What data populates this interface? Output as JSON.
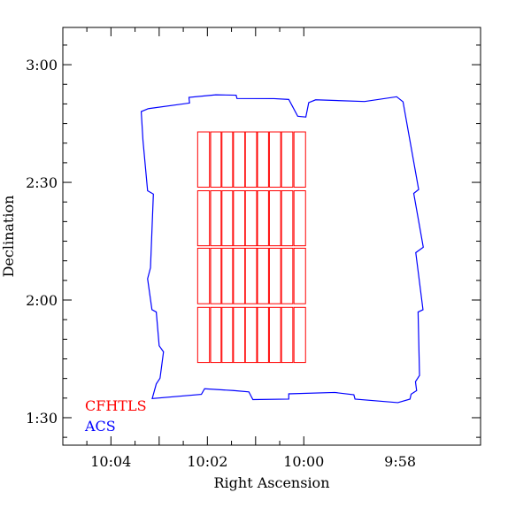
{
  "chart_data": {
    "type": "scatter",
    "xlabel": "Right Ascension",
    "ylabel": "Declination",
    "xlim": [
      10.0833,
      9.9389
    ],
    "ylim": [
      1.3833,
      3.1583
    ],
    "x_ticks": [
      {
        "value": 10.0667,
        "label": "10:04"
      },
      {
        "value": 10.0333,
        "label": "10:02"
      },
      {
        "value": 10.0,
        "label": "10:00"
      },
      {
        "value": 9.9667,
        "label": "9:58"
      }
    ],
    "y_ticks": [
      {
        "value": 3.0,
        "label": "3:00"
      },
      {
        "value": 2.5,
        "label": "2:30"
      },
      {
        "value": 2.0,
        "label": "2:00"
      },
      {
        "value": 1.5,
        "label": "1:30"
      }
    ],
    "series": [
      {
        "name": "ACS",
        "color": "#0000ff",
        "kind": "outline",
        "points": [
          [
            10.0537,
            2.8133
          ],
          [
            10.0395,
            2.8371
          ],
          [
            10.0397,
            2.8612
          ],
          [
            10.0304,
            2.8721
          ],
          [
            10.0234,
            2.8704
          ],
          [
            10.0231,
            2.8563
          ],
          [
            10.0103,
            2.8558
          ],
          [
            10.0052,
            2.8524
          ],
          [
            10.0021,
            2.7809
          ],
          [
            9.9993,
            2.7776
          ],
          [
            9.9983,
            2.8387
          ],
          [
            9.9959,
            2.8508
          ],
          [
            9.979,
            2.8435
          ],
          [
            9.9679,
            2.8637
          ],
          [
            9.9657,
            2.8421
          ],
          [
            9.9603,
            2.4697
          ],
          [
            9.962,
            2.4532
          ],
          [
            9.9587,
            2.2242
          ],
          [
            9.9613,
            2.2014
          ],
          [
            9.9588,
            1.9588
          ],
          [
            9.9605,
            1.9491
          ],
          [
            9.96,
            1.6797
          ],
          [
            9.9614,
            1.6529
          ],
          [
            9.961,
            1.6151
          ],
          [
            9.9629,
            1.6001
          ],
          [
            9.9633,
            1.579
          ],
          [
            9.9675,
            1.564
          ],
          [
            9.9823,
            1.5791
          ],
          [
            9.9827,
            1.5973
          ],
          [
            9.9893,
            1.6072
          ],
          [
            10.0052,
            1.6015
          ],
          [
            10.0052,
            1.5791
          ],
          [
            10.0176,
            1.577
          ],
          [
            10.019,
            1.6098
          ],
          [
            10.0244,
            1.6155
          ],
          [
            10.0343,
            1.623
          ],
          [
            10.0354,
            1.5994
          ],
          [
            10.0524,
            1.5813
          ],
          [
            10.051,
            1.6436
          ],
          [
            10.0497,
            1.6681
          ],
          [
            10.0485,
            1.7797
          ],
          [
            10.05,
            1.8056
          ],
          [
            10.051,
            1.9491
          ],
          [
            10.0525,
            1.9591
          ],
          [
            10.054,
            2.0903
          ],
          [
            10.053,
            2.1373
          ],
          [
            10.052,
            2.4502
          ],
          [
            10.054,
            2.4643
          ],
          [
            10.0556,
            2.6787
          ],
          [
            10.0562,
            2.8008
          ],
          [
            10.0537,
            2.8133
          ]
        ]
      },
      {
        "name": "CFHTLS",
        "color": "#ff0000",
        "kind": "rectangles",
        "rows": [
          {
            "dec_min": 2.4796,
            "dec_max": 2.7144
          },
          {
            "dec_min": 2.2306,
            "dec_max": 2.4643
          },
          {
            "dec_min": 1.9843,
            "dec_max": 2.2201
          },
          {
            "dec_min": 1.7346,
            "dec_max": 1.9688
          }
        ],
        "columns": [
          {
            "ra_east": 10.0367,
            "ra_west": 10.0326
          },
          {
            "ra_east": 10.0322,
            "ra_west": 10.0286
          },
          {
            "ra_east": 10.0283,
            "ra_west": 10.0246
          },
          {
            "ra_east": 10.0243,
            "ra_west": 10.0204
          },
          {
            "ra_east": 10.0202,
            "ra_west": 10.0163
          },
          {
            "ra_east": 10.016,
            "ra_west": 10.0122
          },
          {
            "ra_east": 10.0119,
            "ra_west": 10.008
          },
          {
            "ra_east": 10.0077,
            "ra_west": 10.0038
          },
          {
            "ra_east": 10.0034,
            "ra_west": 9.9994
          }
        ]
      }
    ],
    "legend": {
      "placement": "bottom-left",
      "entries": [
        {
          "label": "CFHTLS",
          "color": "#ff0000"
        },
        {
          "label": "ACS",
          "color": "#0000ff"
        }
      ]
    },
    "grid": false
  }
}
